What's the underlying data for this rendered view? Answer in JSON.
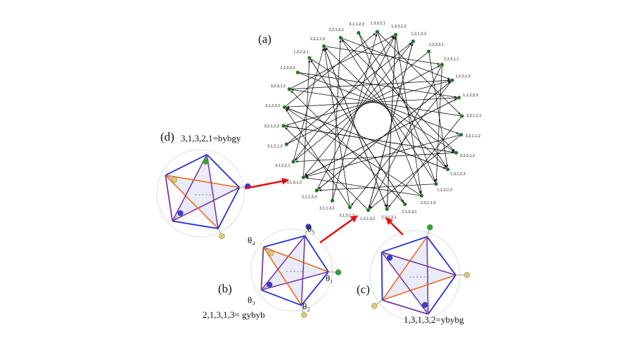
{
  "panels": {
    "a": {
      "label": "(a)",
      "node_labels": [
        "1,3,3,2,1",
        "1,3,3,1,2",
        "1,2,1,3,3",
        "1,2,3,3,1",
        "2,3,3,1,1",
        "1,2,3,1,3",
        "1,1,2,3,3",
        "3,3,1,2,1",
        "3,3,1,1,2",
        "3,3,2,1,1",
        "1,3,1,2,3",
        "1,1,3,2,3",
        "2,3,1,1,3",
        "2,1,3,3,1",
        "2,3,1,3,1",
        "1,3,1,3,2",
        "2,1,3,1,3",
        "3,1,1,3,2",
        "2,1,1,3,3",
        "3,1,3,1,2",
        "3,1,3,2,1",
        "3,1,2,1,3",
        "3,2,1,1,3",
        "3,1,2,3,1",
        "3,2,3,1,1",
        "1,1,3,3,2",
        "1,3,2,3,1",
        "1,3,2,1,3",
        "3,2,1,3,1",
        "3,1,1,2,3"
      ]
    },
    "b": {
      "label": "(b)",
      "caption": "2,1,3,1,3= gybyb",
      "angles": [
        "θ₁",
        "θ₂",
        "θ₃",
        "θ₄",
        "θ₅"
      ]
    },
    "c": {
      "label": "(c)",
      "caption": "1,3,1,3,2=ybybg"
    },
    "d": {
      "label": "(d)",
      "caption": "3,1,3,2,1=bybgy"
    }
  }
}
